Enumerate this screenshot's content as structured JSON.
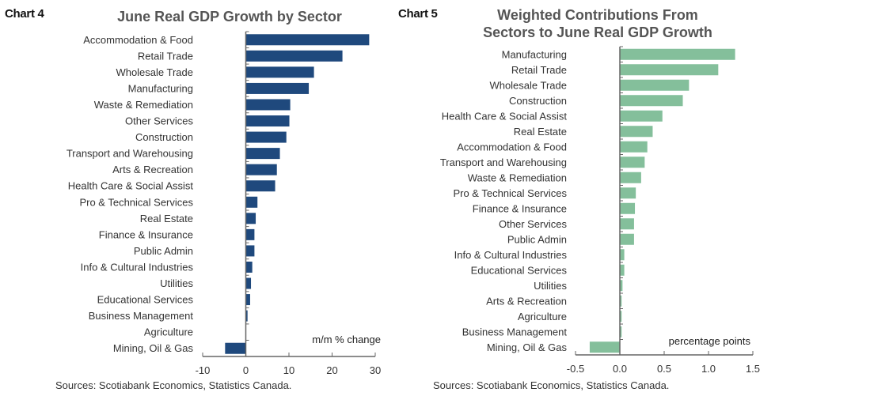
{
  "chart_data": [
    {
      "type": "bar",
      "orientation": "horizontal",
      "tag": "Chart 4",
      "title": "June Real GDP Growth by Sector",
      "unit_label": "m/m % change",
      "xlabel": "",
      "ylabel": "",
      "xlim": [
        -10,
        30
      ],
      "xticks": [
        -10,
        0,
        10,
        20,
        30
      ],
      "tick_labels": [
        "-10",
        "0",
        "10",
        "20",
        "30"
      ],
      "color": "#1f497d",
      "categories": [
        "Accommodation & Food",
        "Retail Trade",
        "Wholesale Trade",
        "Manufacturing",
        "Waste & Remediation",
        "Other Services",
        "Construction",
        "Transport and Warehousing",
        "Arts & Recreation",
        "Health Care & Social Assist",
        "Pro & Technical Services",
        "Real Estate",
        "Finance & Insurance",
        "Public Admin",
        "Info & Cultural Industries",
        "Utilities",
        "Educational Services",
        "Business Management",
        "Agriculture",
        "Mining, Oil & Gas"
      ],
      "values": [
        28.6,
        22.4,
        15.8,
        14.6,
        10.3,
        10.1,
        9.4,
        7.9,
        7.2,
        6.8,
        2.7,
        2.3,
        2.0,
        2.0,
        1.5,
        1.2,
        1.0,
        0.4,
        0.0,
        -4.8
      ],
      "grid": false,
      "source": "Sources: Scotiabank Economics, Statistics Canada."
    },
    {
      "type": "bar",
      "orientation": "horizontal",
      "tag": "Chart 5",
      "title": "Weighted Contributions  From Sectors to June Real GDP Growth",
      "title_lines": [
        "Weighted Contributions  From",
        "Sectors to June Real GDP  Growth"
      ],
      "unit_label": "percentage points",
      "xlabel": "",
      "ylabel": "",
      "xlim": [
        -0.5,
        1.5
      ],
      "xticks": [
        -0.5,
        0.0,
        0.5,
        1.0,
        1.5
      ],
      "tick_labels": [
        "-0.5",
        "0.0",
        "0.5",
        "1.0",
        "1.5"
      ],
      "color": "#84bf9b",
      "categories": [
        "Manufacturing",
        "Retail Trade",
        "Wholesale Trade",
        "Construction",
        "Health Care & Social Assist",
        "Real Estate",
        "Accommodation & Food",
        "Transport and Warehousing",
        "Waste & Remediation",
        "Pro & Technical Services",
        "Finance & Insurance",
        "Other Services",
        "Public Admin",
        "Info & Cultural Industries",
        "Educational Services",
        "Utilities",
        "Arts & Recreation",
        "Agriculture",
        "Business Management",
        "Mining, Oil & Gas"
      ],
      "values": [
        1.3,
        1.11,
        0.78,
        0.71,
        0.48,
        0.37,
        0.31,
        0.28,
        0.24,
        0.18,
        0.17,
        0.16,
        0.16,
        0.05,
        0.05,
        0.03,
        0.02,
        0.02,
        0.02,
        -0.34
      ],
      "grid": false,
      "source": "Sources: Scotiabank Economics, Statistics Canada."
    }
  ]
}
